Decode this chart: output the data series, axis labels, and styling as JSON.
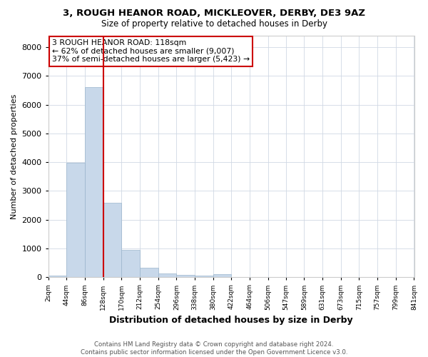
{
  "title": "3, ROUGH HEANOR ROAD, MICKLEOVER, DERBY, DE3 9AZ",
  "subtitle": "Size of property relative to detached houses in Derby",
  "xlabel": "Distribution of detached houses by size in Derby",
  "ylabel": "Number of detached properties",
  "footnote": "Contains HM Land Registry data © Crown copyright and database right 2024.\nContains public sector information licensed under the Open Government Licence v3.0.",
  "annotation_line1": "3 ROUGH HEANOR ROAD: 118sqm",
  "annotation_line2": "← 62% of detached houses are smaller (9,007)",
  "annotation_line3": "37% of semi-detached houses are larger (5,423) →",
  "property_size": 118,
  "bar_color": "#c8d8ea",
  "bar_edge_color": "#9ab5cc",
  "vline_color": "#cc0000",
  "annotation_box_color": "#cc0000",
  "grid_color": "#d0d8e4",
  "background_color": "#ffffff",
  "bins": [
    2,
    44,
    86,
    128,
    170,
    212,
    254,
    296,
    338,
    380,
    422,
    464,
    506,
    547,
    589,
    631,
    673,
    715,
    757,
    799,
    841
  ],
  "bin_labels": [
    "2sqm",
    "44sqm",
    "86sqm",
    "128sqm",
    "170sqm",
    "212sqm",
    "254sqm",
    "296sqm",
    "338sqm",
    "380sqm",
    "422sqm",
    "464sqm",
    "506sqm",
    "547sqm",
    "589sqm",
    "631sqm",
    "673sqm",
    "715sqm",
    "757sqm",
    "799sqm",
    "841sqm"
  ],
  "bar_heights": [
    50,
    3980,
    6600,
    2600,
    950,
    330,
    130,
    70,
    50,
    100,
    0,
    0,
    0,
    0,
    0,
    0,
    0,
    0,
    0,
    0
  ],
  "ylim": [
    0,
    8400
  ],
  "yticks": [
    0,
    1000,
    2000,
    3000,
    4000,
    5000,
    6000,
    7000,
    8000
  ]
}
